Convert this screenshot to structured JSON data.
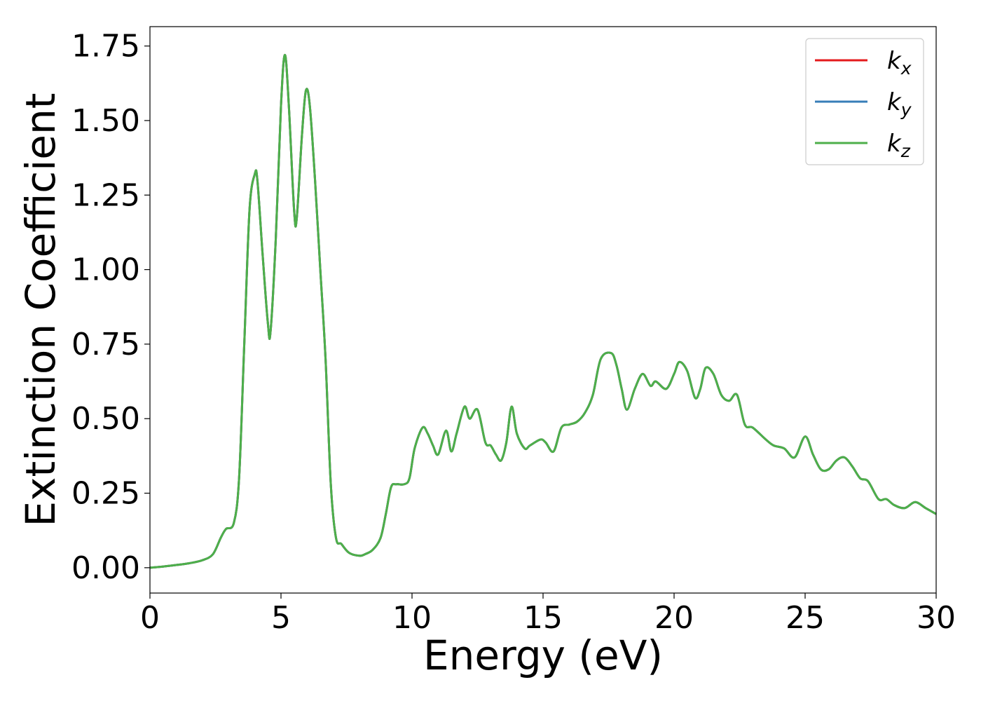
{
  "chart_data": {
    "type": "line",
    "xlabel": "Energy (eV)",
    "ylabel": "Extinction Coefficient",
    "xlim": [
      0,
      30
    ],
    "ylim": [
      -0.085,
      1.815
    ],
    "xticks": [
      "0",
      "5",
      "10",
      "15",
      "20",
      "25",
      "30"
    ],
    "yticks": [
      "0.00",
      "0.25",
      "0.50",
      "0.75",
      "1.00",
      "1.25",
      "1.50",
      "1.75"
    ],
    "grid": false,
    "legend_position": "top-right",
    "series": [
      {
        "name": "k",
        "sub": "x",
        "color": "#e41a1c"
      },
      {
        "name": "k",
        "sub": "y",
        "color": "#377eb8"
      },
      {
        "name": "k",
        "sub": "z",
        "color": "#4daf4a"
      }
    ],
    "x": [
      0,
      0.5,
      1.0,
      1.5,
      2.0,
      2.4,
      2.7,
      2.9,
      3.2,
      3.4,
      3.6,
      3.8,
      4.0,
      4.1,
      4.3,
      4.5,
      4.6,
      4.8,
      5.0,
      5.15,
      5.3,
      5.5,
      5.6,
      5.8,
      5.95,
      6.1,
      6.3,
      6.5,
      6.7,
      6.9,
      7.1,
      7.3,
      7.6,
      8.0,
      8.2,
      8.5,
      8.8,
      9.0,
      9.2,
      9.4,
      9.7,
      9.9,
      10.1,
      10.4,
      10.6,
      10.8,
      11.0,
      11.3,
      11.5,
      11.7,
      12.0,
      12.2,
      12.5,
      12.8,
      13.0,
      13.2,
      13.4,
      13.6,
      13.8,
      14.0,
      14.3,
      14.5,
      14.9,
      15.1,
      15.4,
      15.7,
      16.0,
      16.3,
      16.6,
      16.9,
      17.2,
      17.6,
      17.8,
      18.0,
      18.2,
      18.5,
      18.8,
      19.1,
      19.3,
      19.7,
      20.0,
      20.2,
      20.5,
      20.8,
      21.0,
      21.2,
      21.5,
      21.8,
      22.1,
      22.4,
      22.7,
      23.0,
      23.5,
      23.8,
      24.2,
      24.6,
      25.0,
      25.3,
      25.6,
      25.9,
      26.2,
      26.5,
      26.8,
      27.1,
      27.4,
      27.8,
      28.1,
      28.4,
      28.8,
      29.2,
      29.6,
      30.0
    ],
    "values": [
      0.0,
      0.004,
      0.009,
      0.015,
      0.025,
      0.045,
      0.1,
      0.13,
      0.15,
      0.3,
      0.75,
      1.2,
      1.32,
      1.3,
      1.05,
      0.82,
      0.79,
      1.1,
      1.55,
      1.72,
      1.55,
      1.2,
      1.17,
      1.45,
      1.6,
      1.55,
      1.3,
      1.0,
      0.7,
      0.28,
      0.1,
      0.08,
      0.05,
      0.04,
      0.045,
      0.06,
      0.1,
      0.18,
      0.27,
      0.28,
      0.28,
      0.3,
      0.4,
      0.47,
      0.45,
      0.41,
      0.38,
      0.46,
      0.39,
      0.45,
      0.54,
      0.5,
      0.53,
      0.42,
      0.41,
      0.38,
      0.36,
      0.42,
      0.54,
      0.45,
      0.4,
      0.41,
      0.43,
      0.42,
      0.39,
      0.47,
      0.48,
      0.49,
      0.52,
      0.58,
      0.7,
      0.72,
      0.68,
      0.6,
      0.53,
      0.6,
      0.65,
      0.61,
      0.625,
      0.6,
      0.65,
      0.69,
      0.66,
      0.57,
      0.6,
      0.67,
      0.65,
      0.58,
      0.56,
      0.58,
      0.48,
      0.47,
      0.43,
      0.41,
      0.4,
      0.37,
      0.44,
      0.38,
      0.33,
      0.33,
      0.36,
      0.37,
      0.34,
      0.3,
      0.29,
      0.23,
      0.23,
      0.21,
      0.2,
      0.22,
      0.2,
      0.18
    ]
  }
}
